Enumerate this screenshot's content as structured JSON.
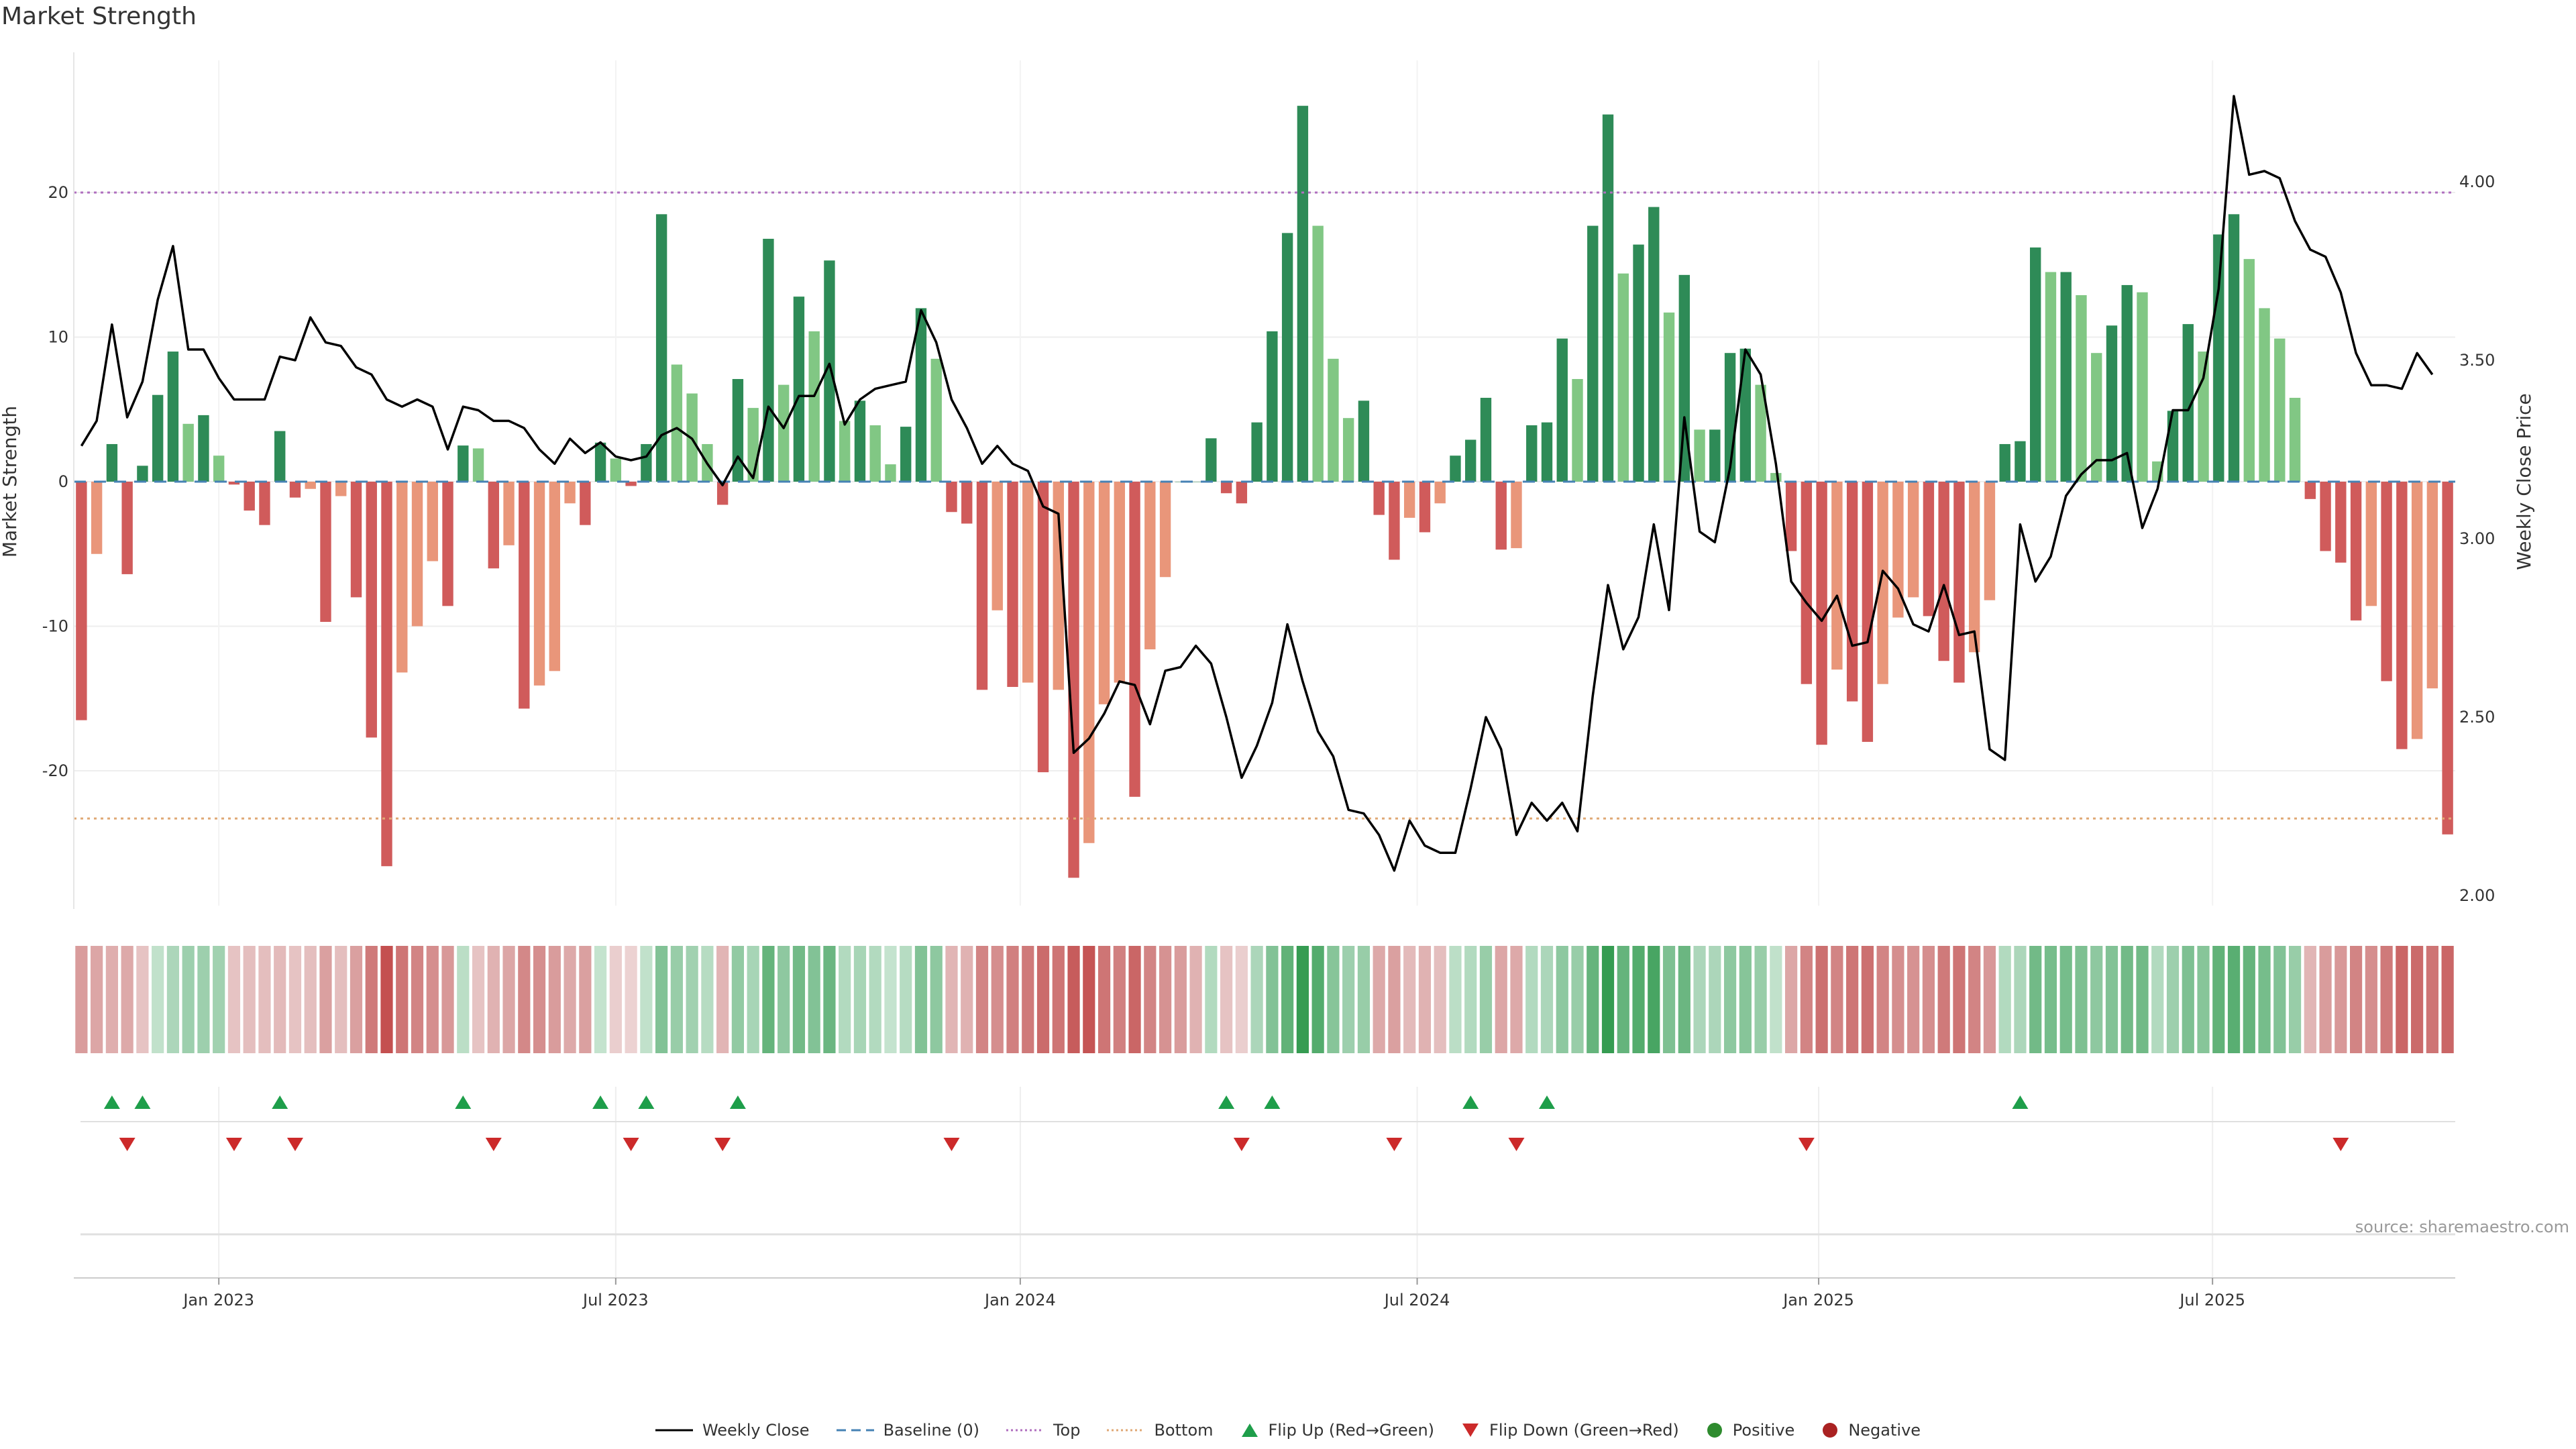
{
  "title": "Market Strength",
  "source": "source: sharemaestro.com",
  "colors": {
    "green_dark": "#2e8b57",
    "green_light": "#81c784",
    "red_dark": "#d05b5b",
    "red_light": "#e9967a",
    "price_line": "#000000",
    "top_line": "#b06fbf",
    "bottom_line": "#e0a875",
    "baseline": "#4682b4",
    "flip_up": "#1e9e4a",
    "flip_down": "#cc2a2a",
    "grid": "#eeeeee"
  },
  "chart_data": {
    "type": "bar",
    "title": "Market Strength",
    "ylabel": "Market Strength",
    "y2label": "Weekly Close Price",
    "ylim": [
      -30,
      30
    ],
    "y2lim": [
      1.95,
      4.4
    ],
    "yticks": [
      {
        "value": 20,
        "label": "20"
      },
      {
        "value": 10,
        "label": "10"
      },
      {
        "value": 0,
        "label": "0"
      },
      {
        "value": -10,
        "label": "-10"
      },
      {
        "value": -20,
        "label": "-20"
      }
    ],
    "y2ticks": [
      {
        "value": 4.0,
        "label": "4.00"
      },
      {
        "value": 3.5,
        "label": "3.50"
      },
      {
        "value": 3.0,
        "label": "3.00"
      },
      {
        "value": 2.5,
        "label": "2.50"
      },
      {
        "value": 2.0,
        "label": "2.00"
      }
    ],
    "top_level": 20,
    "bottom_level": -23.3,
    "xticks": [
      {
        "index": 9,
        "label": "Jan 2023"
      },
      {
        "index": 35,
        "label": "Jul 2023"
      },
      {
        "index": 61.5,
        "label": "Jan 2024"
      },
      {
        "index": 87.5,
        "label": "Jul 2024"
      },
      {
        "index": 113.8,
        "label": "Jan 2025"
      },
      {
        "index": 139.6,
        "label": "Jul 2025"
      }
    ],
    "strength": [
      -16.5,
      -5,
      2.6,
      -6.4,
      1.1,
      6,
      9,
      4,
      4.6,
      1.8,
      -0.2,
      -2,
      -3,
      3.5,
      -1.1,
      -0.5,
      -9.7,
      -1,
      -8,
      -17.7,
      -26.6,
      -13.2,
      -10,
      -5.5,
      -8.6,
      2.5,
      2.3,
      -6,
      -4.4,
      -15.7,
      -14.1,
      -13.1,
      -1.5,
      -3,
      2.7,
      1.6,
      -0.3,
      2.6,
      18.5,
      8.1,
      6.1,
      2.6,
      -1.6,
      7.1,
      5.1,
      16.8,
      6.7,
      12.8,
      10.4,
      15.3,
      4.2,
      5.6,
      3.9,
      1.2,
      3.8,
      12,
      8.5,
      -2.1,
      -2.9,
      -14.4,
      -8.9,
      -14.2,
      -13.9,
      -20.1,
      -14.4,
      -27.4,
      -25,
      -15.4,
      -13.9,
      -21.8,
      -11.6,
      -6.6,
      0,
      0,
      3,
      -0.8,
      -1.5,
      4.1,
      10.4,
      17.2,
      26,
      17.7,
      8.5,
      4.4,
      5.6,
      -2.3,
      -5.4,
      -2.5,
      -3.5,
      -1.5,
      1.8,
      2.9,
      5.8,
      -4.7,
      -4.6,
      3.9,
      4.1,
      9.9,
      7.1,
      17.7,
      25.4,
      14.4,
      16.4,
      19,
      11.7,
      14.3,
      3.6,
      3.6,
      8.9,
      9.2,
      6.7,
      0.6,
      -4.8,
      -14,
      -18.2,
      -13,
      -15.2,
      -18,
      -14,
      -9.4,
      -8,
      -9.3,
      -12.4,
      -13.9,
      -11.8,
      -8.2,
      2.6,
      2.8,
      16.2,
      14.5,
      14.5,
      12.9,
      8.9,
      10.8,
      13.6,
      13.1,
      1.4,
      4.9,
      10.9,
      9,
      17.1,
      18.5,
      15.4,
      12,
      9.9,
      5.8,
      -1.2,
      -4.8,
      -5.6,
      -9.6,
      -8.6,
      -13.8,
      -18.5,
      -17.8,
      -14.3,
      -24.4
    ],
    "weekly_close": [
      3.26,
      3.33,
      3.6,
      3.34,
      3.44,
      3.67,
      3.82,
      3.53,
      3.53,
      3.45,
      3.39,
      3.39,
      3.39,
      3.51,
      3.5,
      3.62,
      3.55,
      3.54,
      3.48,
      3.46,
      3.39,
      3.37,
      3.39,
      3.37,
      3.25,
      3.37,
      3.36,
      3.33,
      3.33,
      3.31,
      3.25,
      3.21,
      3.28,
      3.24,
      3.27,
      3.23,
      3.22,
      3.23,
      3.29,
      3.31,
      3.28,
      3.21,
      3.15,
      3.23,
      3.17,
      3.37,
      3.31,
      3.4,
      3.4,
      3.49,
      3.32,
      3.39,
      3.42,
      3.43,
      3.44,
      3.64,
      3.55,
      3.39,
      3.31,
      3.21,
      3.26,
      3.21,
      3.19,
      3.09,
      3.07,
      2.4,
      2.44,
      2.51,
      2.6,
      2.59,
      2.48,
      2.63,
      2.64,
      2.7,
      2.65,
      2.5,
      2.33,
      2.42,
      2.54,
      2.76,
      2.6,
      2.46,
      2.39,
      2.24,
      2.23,
      2.17,
      2.07,
      2.21,
      2.14,
      2.12,
      2.12,
      2.3,
      2.5,
      2.41,
      2.17,
      2.26,
      2.21,
      2.26,
      2.18,
      2.56,
      2.87,
      2.69,
      2.78,
      3.04,
      2.8,
      3.34,
      3.02,
      2.99,
      3.2,
      3.53,
      3.46,
      3.21,
      2.88,
      2.82,
      2.77,
      2.84,
      2.7,
      2.71,
      2.91,
      2.86,
      2.76,
      2.74,
      2.87,
      2.73,
      2.74,
      2.41,
      2.38,
      3.04,
      2.88,
      2.95,
      3.12,
      3.18,
      3.22,
      3.22,
      3.24,
      3.03,
      3.14,
      3.36,
      3.36,
      3.45,
      3.7,
      4.24,
      4.02,
      4.03,
      4.01,
      3.89,
      3.81,
      3.79,
      3.69,
      3.52,
      3.43,
      3.43,
      3.42,
      3.52,
      3.46
    ]
  },
  "heat_strip": {
    "values": [
      -30,
      -26,
      -22,
      -24,
      -12,
      6,
      14,
      20,
      20,
      18,
      -12,
      -14,
      -14,
      -16,
      -12,
      -14,
      -28,
      -14,
      -28,
      -44,
      -60,
      -46,
      -40,
      -36,
      -32,
      8,
      -12,
      -20,
      -26,
      -38,
      -36,
      -30,
      -24,
      -28,
      4,
      -6,
      -4,
      6,
      30,
      22,
      18,
      10,
      -18,
      24,
      16,
      40,
      26,
      36,
      30,
      38,
      12,
      16,
      12,
      4,
      10,
      30,
      26,
      -18,
      -20,
      -40,
      -36,
      -42,
      -44,
      -50,
      -46,
      -56,
      -58,
      -46,
      -42,
      -52,
      -40,
      -34,
      -30,
      -20,
      12,
      -12,
      -6,
      14,
      30,
      42,
      56,
      46,
      28,
      20,
      22,
      -24,
      -28,
      -16,
      -20,
      -14,
      8,
      12,
      22,
      -26,
      -24,
      12,
      14,
      26,
      22,
      40,
      56,
      40,
      46,
      50,
      32,
      38,
      14,
      14,
      26,
      28,
      22,
      6,
      -26,
      -40,
      -48,
      -40,
      -46,
      -48,
      -40,
      -36,
      -34,
      -36,
      -44,
      -46,
      -40,
      -32,
      12,
      14,
      36,
      34,
      34,
      32,
      26,
      30,
      36,
      36,
      12,
      20,
      32,
      28,
      42,
      44,
      40,
      34,
      30,
      22,
      -18,
      -30,
      -32,
      -40,
      -36,
      -44,
      -52,
      -50,
      -46,
      -52
    ]
  },
  "flip_up_indices": [
    2,
    4,
    13,
    25,
    34,
    37,
    43,
    75,
    78,
    91,
    96,
    127
  ],
  "flip_down_indices": [
    3,
    10,
    14,
    27,
    36,
    42,
    57,
    76,
    86,
    94,
    113,
    148
  ],
  "legend": [
    {
      "label": "Weekly Close",
      "icon": "line-solid-icon"
    },
    {
      "label": "Baseline (0)",
      "icon": "line-dashed-icon"
    },
    {
      "label": "Top",
      "icon": "line-dotted-purple-icon"
    },
    {
      "label": "Bottom",
      "icon": "line-dotted-orange-icon"
    },
    {
      "label": "Flip Up (Red→Green)",
      "icon": "triangle-up-icon"
    },
    {
      "label": "Flip Down (Green→Red)",
      "icon": "triangle-down-icon"
    },
    {
      "label": "Positive",
      "icon": "green-dot-icon"
    },
    {
      "label": "Negative",
      "icon": "red-dot-icon"
    }
  ]
}
